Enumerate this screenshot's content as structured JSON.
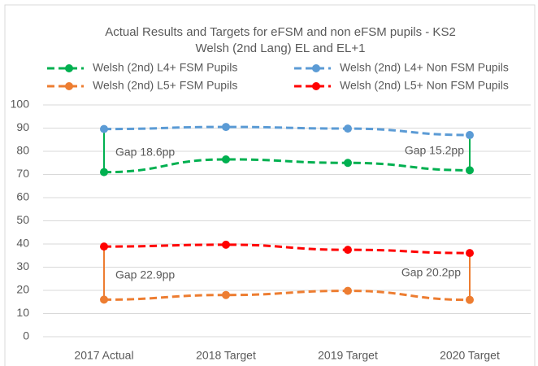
{
  "chart_data": {
    "type": "line",
    "title": "Actual Results and Targets for eFSM and non eFSM pupils - KS2",
    "subtitle": "Welsh (2nd Lang) EL and EL+1",
    "categories": [
      "2017 Actual",
      "2018 Target",
      "2019 Target",
      "2020 Target"
    ],
    "series": [
      {
        "name": "Welsh (2nd) L4+ FSM Pupils",
        "color": "#00b050",
        "values": [
          71.0,
          76.5,
          75.0,
          71.8
        ]
      },
      {
        "name": "Welsh (2nd) L4+ Non FSM Pupils",
        "color": "#5b9bd5",
        "values": [
          89.6,
          90.5,
          89.8,
          87.0
        ]
      },
      {
        "name": "Welsh (2nd) L5+ FSM Pupils",
        "color": "#ed7d31",
        "values": [
          16.0,
          18.0,
          19.8,
          15.9
        ]
      },
      {
        "name": "Welsh (2nd) L5+ Non FSM Pupils",
        "color": "#ff0000",
        "values": [
          38.9,
          39.7,
          37.5,
          36.1
        ]
      }
    ],
    "annotations": [
      "Gap 18.6pp",
      "Gap 15.2pp",
      "Gap 22.9pp",
      "Gap 20.2pp"
    ],
    "ylim": [
      0,
      100
    ],
    "yticks": [
      0,
      10,
      20,
      30,
      40,
      50,
      60,
      70,
      80,
      90,
      100
    ],
    "grid": true
  }
}
